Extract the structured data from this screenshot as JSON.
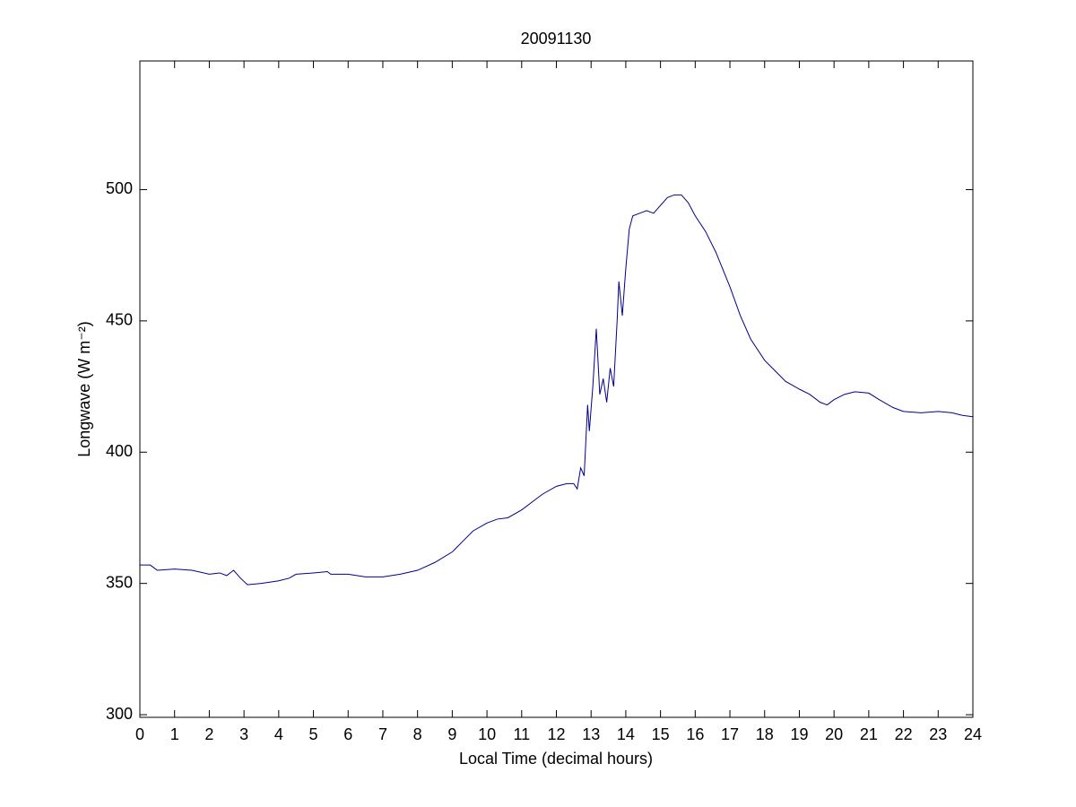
{
  "chart_data": {
    "type": "line",
    "title": "20091130",
    "x_label": "Local Time (decimal hours)",
    "y_label": "Longwave (W m⁻²)",
    "xlim": [
      0,
      24
    ],
    "ylim": [
      299,
      549
    ],
    "xticks": [
      0,
      1,
      2,
      3,
      4,
      5,
      6,
      7,
      8,
      9,
      10,
      11,
      12,
      13,
      14,
      15,
      16,
      17,
      18,
      19,
      20,
      21,
      22,
      23,
      24
    ],
    "yticks": [
      300,
      350,
      400,
      450,
      500
    ],
    "grid": false,
    "x": [
      0,
      0.3,
      0.5,
      1,
      1.5,
      2,
      2.3,
      2.5,
      2.7,
      2.9,
      3.1,
      3.5,
      4,
      4.3,
      4.5,
      5,
      5.4,
      5.5,
      6,
      6.5,
      7,
      7.5,
      8,
      8.5,
      9,
      9.3,
      9.6,
      10,
      10.3,
      10.6,
      11,
      11.3,
      11.6,
      12,
      12.3,
      12.5,
      12.6,
      12.7,
      12.8,
      12.9,
      12.95,
      13.05,
      13.15,
      13.25,
      13.35,
      13.45,
      13.55,
      13.65,
      13.75,
      13.8,
      13.9,
      14.0,
      14.1,
      14.2,
      14.4,
      14.6,
      14.8,
      15.0,
      15.2,
      15.4,
      15.6,
      15.8,
      16.0,
      16.3,
      16.6,
      17.0,
      17.3,
      17.6,
      18.0,
      18.3,
      18.6,
      19.0,
      19.3,
      19.6,
      19.8,
      20.0,
      20.3,
      20.6,
      21.0,
      21.3,
      21.7,
      22.0,
      22.5,
      23.0,
      23.4,
      23.7,
      24
    ],
    "series": [
      {
        "color": "#00008b",
        "values": [
          357,
          357,
          355,
          355.5,
          355,
          353.5,
          354,
          353,
          355,
          352,
          349.5,
          350,
          351,
          352,
          353.5,
          354,
          354.5,
          353.5,
          353.5,
          352.5,
          352.5,
          353.5,
          355,
          358,
          362,
          366,
          370,
          373,
          374.5,
          375,
          378,
          381,
          384,
          387,
          388,
          388,
          386,
          394,
          391,
          418,
          408,
          425,
          447,
          422,
          428,
          419,
          432,
          425,
          450,
          465,
          452,
          470,
          485,
          490,
          491,
          492,
          491,
          494,
          497,
          498,
          498,
          495,
          490,
          484,
          476,
          463,
          452,
          443,
          435,
          431,
          427,
          424,
          422,
          419,
          418,
          420,
          422,
          423,
          422.5,
          420,
          417,
          415.5,
          415,
          415.5,
          415,
          414,
          413.5
        ]
      }
    ]
  }
}
